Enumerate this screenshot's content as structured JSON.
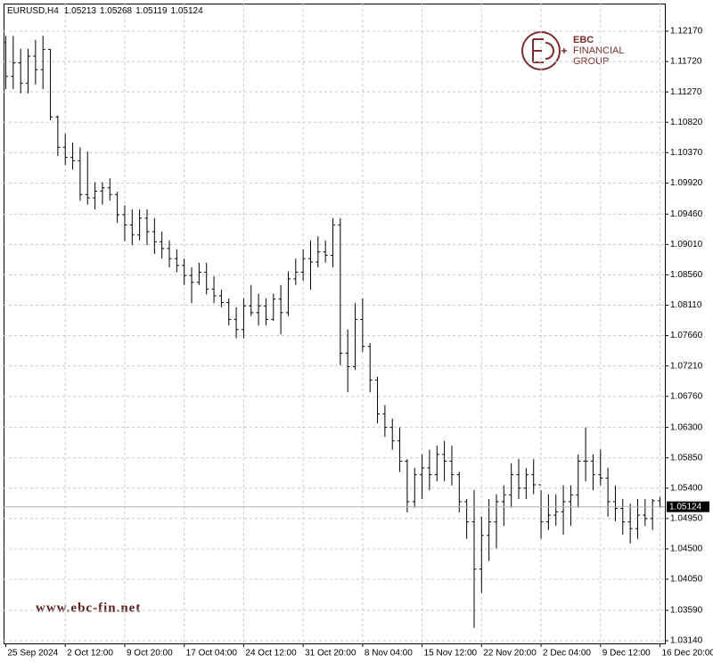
{
  "chart_data": {
    "type": "ohlc",
    "symbol": "EURUSD,H4",
    "color": "#000000",
    "grid": true,
    "logo_text": [
      "EBC",
      "FINANCIAL",
      "GROUP"
    ],
    "website": "www.ebc-fin.net",
    "categories": [
      "25 Sep 2024",
      null,
      null,
      null,
      null,
      null,
      null,
      null,
      "2 Oct 12:00",
      null,
      null,
      null,
      null,
      null,
      null,
      null,
      "9 Oct 20:00",
      null,
      null,
      null,
      null,
      null,
      null,
      null,
      "17 Oct 04:00",
      null,
      null,
      null,
      null,
      null,
      null,
      null,
      "24 Oct 12:00",
      null,
      null,
      null,
      null,
      null,
      null,
      null,
      "31 Oct 20:00",
      null,
      null,
      null,
      null,
      null,
      null,
      null,
      "8 Nov 04:00",
      null,
      null,
      null,
      null,
      null,
      null,
      null,
      "15 Nov 12:00",
      null,
      null,
      null,
      null,
      null,
      null,
      null,
      "22 Nov 20:00",
      null,
      null,
      null,
      null,
      null,
      null,
      null,
      "2 Dec 04:00",
      null,
      null,
      null,
      null,
      null,
      null,
      null,
      "9 Dec 12:00",
      null,
      null,
      null,
      null,
      null,
      null,
      null,
      "16 Dec 20:00"
    ],
    "open": [
      1.12,
      1.115,
      1.117,
      1.114,
      1.118,
      1.116,
      1.119,
      1.109,
      1.1045,
      1.103,
      1.1025,
      1.0975,
      1.097,
      1.098,
      1.0985,
      1.0975,
      1.0945,
      1.093,
      1.0915,
      1.094,
      1.092,
      1.0905,
      1.0895,
      1.088,
      1.087,
      1.0855,
      1.0845,
      1.086,
      1.0835,
      1.0825,
      1.0815,
      1.079,
      1.0775,
      1.081,
      1.08,
      1.081,
      1.079,
      1.082,
      1.08,
      1.085,
      1.086,
      1.088,
      1.0875,
      1.089,
      1.0885,
      1.093,
      1.074,
      1.072,
      1.079,
      1.075,
      1.07,
      1.065,
      1.063,
      1.061,
      1.058,
      1.052,
      1.056,
      1.057,
      1.056,
      1.059,
      1.058,
      1.056,
      1.052,
      1.049,
      1.042,
      1.047,
      1.049,
      1.052,
      1.053,
      1.056,
      1.054,
      1.056,
      1.0545,
      1.049,
      1.05,
      1.0505,
      1.052,
      1.053,
      1.058,
      1.058,
      1.056,
      1.0555,
      1.052,
      1.051,
      1.049,
      1.048,
      1.05,
      1.0495,
      1.05213
    ],
    "high": [
      1.121,
      1.121,
      1.1191,
      1.1191,
      1.1204,
      1.121,
      1.119,
      1.1092,
      1.1065,
      1.1052,
      1.1045,
      1.1039,
      1.0993,
      1.0993,
      1.0999,
      1.0979,
      1.0959,
      1.0953,
      1.0953,
      1.0953,
      1.094,
      1.092,
      1.0907,
      1.0894,
      1.088,
      1.0867,
      1.0874,
      1.0874,
      1.0854,
      1.0834,
      1.0821,
      1.0808,
      1.0821,
      1.0841,
      1.0828,
      1.0821,
      1.0828,
      1.0841,
      1.0861,
      1.088,
      1.0894,
      1.0907,
      1.0913,
      1.0907,
      1.094,
      1.094,
      1.0775,
      1.0814,
      1.0821,
      1.0755,
      1.0705,
      1.0663,
      1.0643,
      1.063,
      1.0583,
      1.057,
      1.059,
      1.0597,
      1.0603,
      1.061,
      1.0603,
      1.0564,
      1.0524,
      1.0537,
      1.0498,
      1.0524,
      1.0531,
      1.0544,
      1.0577,
      1.0583,
      1.057,
      1.0583,
      1.0537,
      1.0531,
      1.0531,
      1.0544,
      1.0544,
      1.059,
      1.063,
      1.059,
      1.0597,
      1.057,
      1.0544,
      1.0524,
      1.0517,
      1.0524,
      1.0524,
      1.0524,
      1.05268
    ],
    "low": [
      1.1131,
      1.1131,
      1.1125,
      1.1125,
      1.1138,
      1.1131,
      1.1085,
      1.1032,
      1.1019,
      1.1012,
      1.0966,
      1.096,
      1.0953,
      1.096,
      1.0966,
      1.0933,
      1.0906,
      1.09,
      1.0907,
      1.09,
      1.0887,
      1.088,
      1.0867,
      1.086,
      1.0841,
      1.0814,
      1.0841,
      1.0827,
      1.0814,
      1.0808,
      1.0781,
      1.0762,
      1.0762,
      1.0795,
      1.0781,
      1.0781,
      1.0788,
      1.0768,
      1.0795,
      1.0841,
      1.0847,
      1.0834,
      1.0867,
      1.0874,
      1.0867,
      1.0722,
      1.0682,
      1.0715,
      1.0742,
      1.0682,
      1.0636,
      1.0616,
      1.0597,
      1.0564,
      1.0504,
      1.0511,
      1.0524,
      1.0537,
      1.055,
      1.055,
      1.0544,
      1.0504,
      1.0465,
      1.0333,
      1.0385,
      1.0432,
      1.0451,
      1.0484,
      1.0511,
      1.0524,
      1.0524,
      1.0531,
      1.0465,
      1.0478,
      1.0484,
      1.0471,
      1.0484,
      1.0511,
      1.055,
      1.0537,
      1.0544,
      1.0498,
      1.0491,
      1.0471,
      1.0458,
      1.0465,
      1.0484,
      1.0478,
      1.05119
    ],
    "close": [
      1.115,
      1.117,
      1.114,
      1.118,
      1.116,
      1.119,
      1.109,
      1.1045,
      1.103,
      1.1025,
      1.0975,
      1.097,
      1.098,
      1.0985,
      1.0975,
      1.0945,
      1.093,
      1.0915,
      1.094,
      1.092,
      1.0905,
      1.0895,
      1.088,
      1.087,
      1.0855,
      1.0845,
      1.086,
      1.0835,
      1.0825,
      1.0815,
      1.079,
      1.0775,
      1.081,
      1.08,
      1.081,
      1.079,
      1.082,
      1.08,
      1.085,
      1.086,
      1.088,
      1.0875,
      1.089,
      1.0885,
      1.093,
      1.074,
      1.072,
      1.079,
      1.075,
      1.07,
      1.065,
      1.063,
      1.061,
      1.058,
      1.052,
      1.056,
      1.057,
      1.056,
      1.059,
      1.058,
      1.056,
      1.052,
      1.049,
      1.042,
      1.047,
      1.049,
      1.052,
      1.053,
      1.056,
      1.054,
      1.056,
      1.0545,
      1.049,
      1.05,
      1.0505,
      1.052,
      1.053,
      1.058,
      1.058,
      1.056,
      1.0555,
      1.052,
      1.051,
      1.049,
      1.048,
      1.05,
      1.0495,
      1.05213,
      1.05124
    ],
    "ylim": [
      1.031,
      1.12579
    ],
    "yticks": [
      {
        "value": 1.1217,
        "label": "1.12170"
      },
      {
        "value": 1.1172,
        "label": "1.11720"
      },
      {
        "value": 1.1127,
        "label": "1.11270"
      },
      {
        "value": 1.1082,
        "label": "1.10820"
      },
      {
        "value": 1.1037,
        "label": "1.10370"
      },
      {
        "value": 1.0992,
        "label": "1.09920"
      },
      {
        "value": 1.0946,
        "label": "1.09460"
      },
      {
        "value": 1.0901,
        "label": "1.09010"
      },
      {
        "value": 1.0856,
        "label": "1.08560"
      },
      {
        "value": 1.0811,
        "label": "1.08110"
      },
      {
        "value": 1.0766,
        "label": "1.07660"
      },
      {
        "value": 1.0721,
        "label": "1.07210"
      },
      {
        "value": 1.0676,
        "label": "1.06760"
      },
      {
        "value": 1.063,
        "label": "1.06300"
      },
      {
        "value": 1.0585,
        "label": "1.05850"
      },
      {
        "value": 1.054,
        "label": "1.05400"
      },
      {
        "value": 1.0495,
        "label": "1.04950"
      },
      {
        "value": 1.045,
        "label": "1.04500"
      },
      {
        "value": 1.0405,
        "label": "1.04050"
      },
      {
        "value": 1.0359,
        "label": "1.03590"
      },
      {
        "value": 1.0314,
        "label": "1.03140"
      }
    ]
  }
}
